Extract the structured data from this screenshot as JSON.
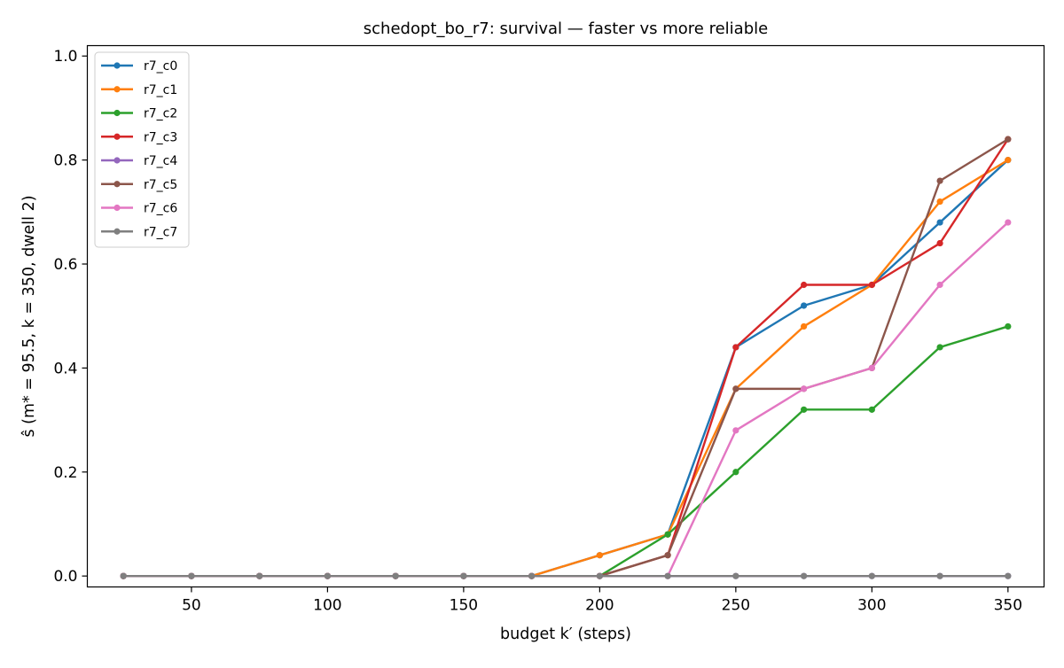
{
  "chart_data": {
    "type": "line",
    "title": "schedopt_bo_r7: survival — faster vs more reliable",
    "xlabel": "budget k′ (steps)",
    "ylabel": "ŝ (m* = 95.5, k = 350, dwell 2)",
    "xlim": [
      11.75,
      363.25
    ],
    "ylim": [
      -0.021,
      1.02
    ],
    "xticks": [
      50,
      100,
      150,
      200,
      250,
      300,
      350
    ],
    "yticks": [
      0.0,
      0.2,
      0.4,
      0.6,
      0.8,
      1.0
    ],
    "xtick_labels": [
      "50",
      "100",
      "150",
      "200",
      "250",
      "300",
      "350"
    ],
    "ytick_labels": [
      "0.0",
      "0.2",
      "0.4",
      "0.6",
      "0.8",
      "1.0"
    ],
    "grid": false,
    "legend_position": "upper-left",
    "x": [
      25,
      50,
      75,
      100,
      125,
      150,
      175,
      200,
      225,
      250,
      275,
      300,
      325,
      350
    ],
    "series": [
      {
        "name": "r7_c0",
        "color": "#1f77b4",
        "values": [
          0,
          0,
          0,
          0,
          0,
          0,
          0,
          0.04,
          0.08,
          0.44,
          0.52,
          0.56,
          0.68,
          0.8
        ]
      },
      {
        "name": "r7_c1",
        "color": "#ff7f0e",
        "values": [
          0,
          0,
          0,
          0,
          0,
          0,
          0,
          0.04,
          0.08,
          0.36,
          0.48,
          0.56,
          0.72,
          0.8
        ]
      },
      {
        "name": "r7_c2",
        "color": "#2ca02c",
        "values": [
          0,
          0,
          0,
          0,
          0,
          0,
          0,
          0,
          0.08,
          0.2,
          0.32,
          0.32,
          0.44,
          0.48
        ]
      },
      {
        "name": "r7_c3",
        "color": "#d62728",
        "values": [
          0,
          0,
          0,
          0,
          0,
          0,
          0,
          0,
          0.04,
          0.44,
          0.56,
          0.56,
          0.64,
          0.84
        ]
      },
      {
        "name": "r7_c4",
        "color": "#9467bd",
        "values": [
          0,
          0,
          0,
          0,
          0,
          0,
          0,
          0,
          0,
          0,
          0,
          0,
          0,
          0
        ]
      },
      {
        "name": "r7_c5",
        "color": "#8c564b",
        "values": [
          0,
          0,
          0,
          0,
          0,
          0,
          0,
          0,
          0.04,
          0.36,
          0.36,
          0.4,
          0.76,
          0.84
        ]
      },
      {
        "name": "r7_c6",
        "color": "#e377c2",
        "values": [
          0,
          0,
          0,
          0,
          0,
          0,
          0,
          0,
          0,
          0.28,
          0.36,
          0.4,
          0.56,
          0.68
        ]
      },
      {
        "name": "r7_c7",
        "color": "#7f7f7f",
        "values": [
          0,
          0,
          0,
          0,
          0,
          0,
          0,
          0,
          0,
          0,
          0,
          0,
          0,
          0
        ]
      }
    ]
  }
}
